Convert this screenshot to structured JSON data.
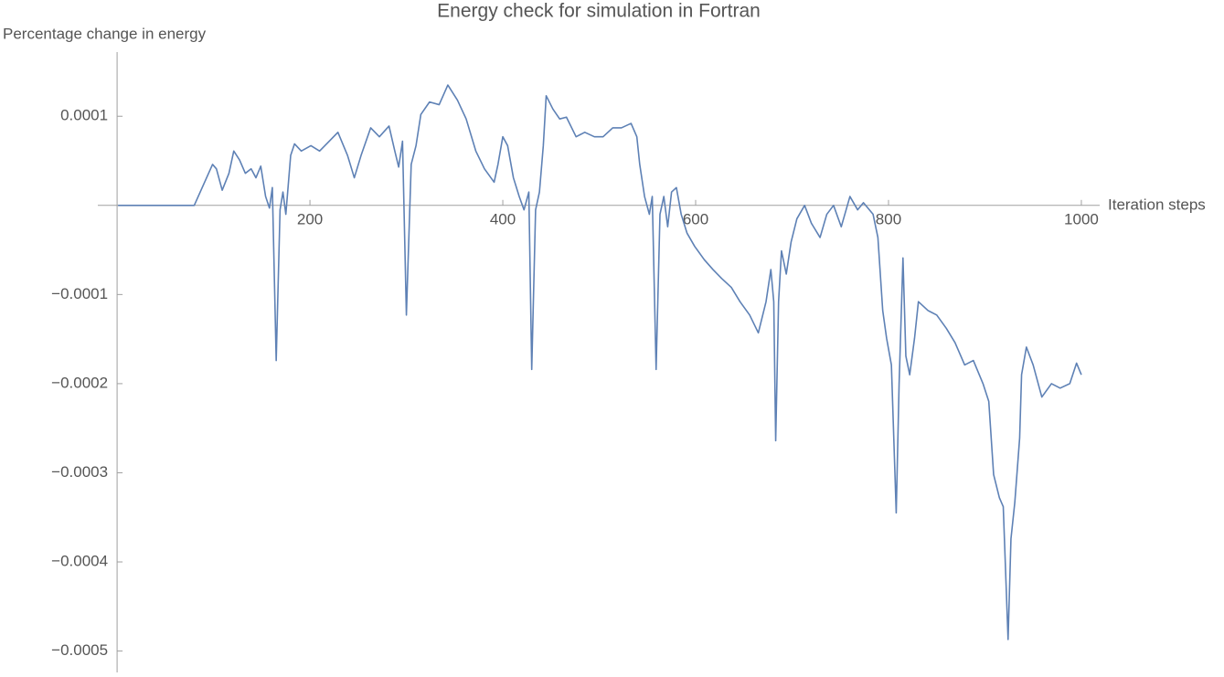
{
  "chart_data": {
    "type": "line",
    "title": "Energy check for simulation in Fortran",
    "ylabel": "Percentage change in energy",
    "xlabel": "Iteration steps",
    "color": "#5e81b5",
    "xlim": [
      -20,
      1019
    ],
    "ylim": [
      -0.000524,
      0.000172
    ],
    "xticks": [
      200,
      400,
      600,
      800,
      1000
    ],
    "yticks": [
      {
        "value": -0.0005,
        "label": "−0.0005"
      },
      {
        "value": -0.0004,
        "label": "−0.0004"
      },
      {
        "value": -0.0003,
        "label": "−0.0003"
      },
      {
        "value": -0.0002,
        "label": "−0.0002"
      },
      {
        "value": -0.0001,
        "label": "−0.0001"
      },
      0.0001
    ],
    "x": [
      1,
      80,
      99,
      103,
      109,
      116,
      121,
      127,
      133,
      139,
      144,
      149,
      154,
      158,
      161,
      165,
      169,
      172,
      175,
      180,
      184,
      191,
      201,
      210,
      220,
      229,
      239,
      246,
      253,
      263,
      272,
      282,
      288,
      292,
      296,
      300,
      305,
      310,
      315,
      324,
      334,
      343,
      353,
      362,
      372,
      381,
      391,
      395,
      400,
      405,
      411,
      417,
      422,
      427,
      430,
      434,
      438,
      442,
      445,
      452,
      459,
      466,
      476,
      485,
      495,
      504,
      514,
      523,
      533,
      539,
      542,
      547,
      552,
      555,
      559,
      563,
      567,
      571,
      575,
      580,
      585,
      591,
      599,
      609,
      618,
      627,
      637,
      646,
      656,
      665,
      673,
      678,
      681,
      683,
      686,
      689,
      694,
      699,
      705,
      713,
      720,
      729,
      736,
      743,
      751,
      760,
      768,
      774,
      784,
      789,
      794,
      798,
      803,
      808,
      811,
      815,
      818,
      822,
      827,
      831,
      841,
      850,
      860,
      869,
      879,
      888,
      898,
      904,
      909,
      915,
      919,
      924,
      927,
      931,
      936,
      938,
      943,
      950,
      959,
      969,
      978,
      988,
      995,
      1000
    ],
    "values": [
      0,
      0,
      4.6e-05,
      4.1e-05,
      1.7e-05,
      3.6e-05,
      6.1e-05,
      5.1e-05,
      3.6e-05,
      4.1e-05,
      3.1e-05,
      4.4e-05,
      1e-05,
      -3e-06,
      2e-05,
      -0.000174,
      -5e-06,
      1.5e-05,
      -1e-05,
      5.6e-05,
      6.9e-05,
      6.1e-05,
      6.7e-05,
      6.1e-05,
      7.2e-05,
      8.2e-05,
      5.6e-05,
      3.1e-05,
      5.6e-05,
      8.7e-05,
      7.7e-05,
      8.9e-05,
      6.1e-05,
      4.3e-05,
      7.2e-05,
      -0.000123,
      4.6e-05,
      6.7e-05,
      0.000102,
      0.000116,
      0.000113,
      0.000135,
      0.000118,
      9.7e-05,
      6.1e-05,
      4.1e-05,
      2.6e-05,
      4.6e-05,
      7.7e-05,
      6.7e-05,
      3.1e-05,
      1e-05,
      -5e-06,
      1.5e-05,
      -0.000184,
      -5e-06,
      1.5e-05,
      6.7e-05,
      0.000123,
      0.000108,
      9.7e-05,
      9.9e-05,
      7.7e-05,
      8.2e-05,
      7.7e-05,
      7.7e-05,
      8.7e-05,
      8.7e-05,
      9.2e-05,
      7.7e-05,
      4.6e-05,
      1e-05,
      -1e-05,
      1e-05,
      -0.000184,
      -1e-05,
      1e-05,
      -2.4e-05,
      1.5e-05,
      2e-05,
      -1e-05,
      -3.1e-05,
      -4.6e-05,
      -6.1e-05,
      -7.2e-05,
      -8.2e-05,
      -9.2e-05,
      -0.000108,
      -0.000123,
      -0.000143,
      -0.000108,
      -7.2e-05,
      -0.000108,
      -0.000264,
      -0.000108,
      -5.1e-05,
      -7.7e-05,
      -4.1e-05,
      -1.5e-05,
      0,
      -2e-05,
      -3.6e-05,
      -1e-05,
      0,
      -2.4e-05,
      1e-05,
      -5e-06,
      3e-06,
      -1e-05,
      -3.6e-05,
      -0.000118,
      -0.000149,
      -0.000179,
      -0.000345,
      -0.0002,
      -5.9e-05,
      -0.000169,
      -0.00019,
      -0.000149,
      -0.000108,
      -0.000118,
      -0.000123,
      -0.000138,
      -0.000154,
      -0.000179,
      -0.000174,
      -0.0002,
      -0.00022,
      -0.000302,
      -0.000328,
      -0.000338,
      -0.000487,
      -0.000374,
      -0.000333,
      -0.000261,
      -0.00019,
      -0.000159,
      -0.000179,
      -0.000215,
      -0.0002,
      -0.000205,
      -0.0002,
      -0.000177,
      -0.00019
    ]
  }
}
